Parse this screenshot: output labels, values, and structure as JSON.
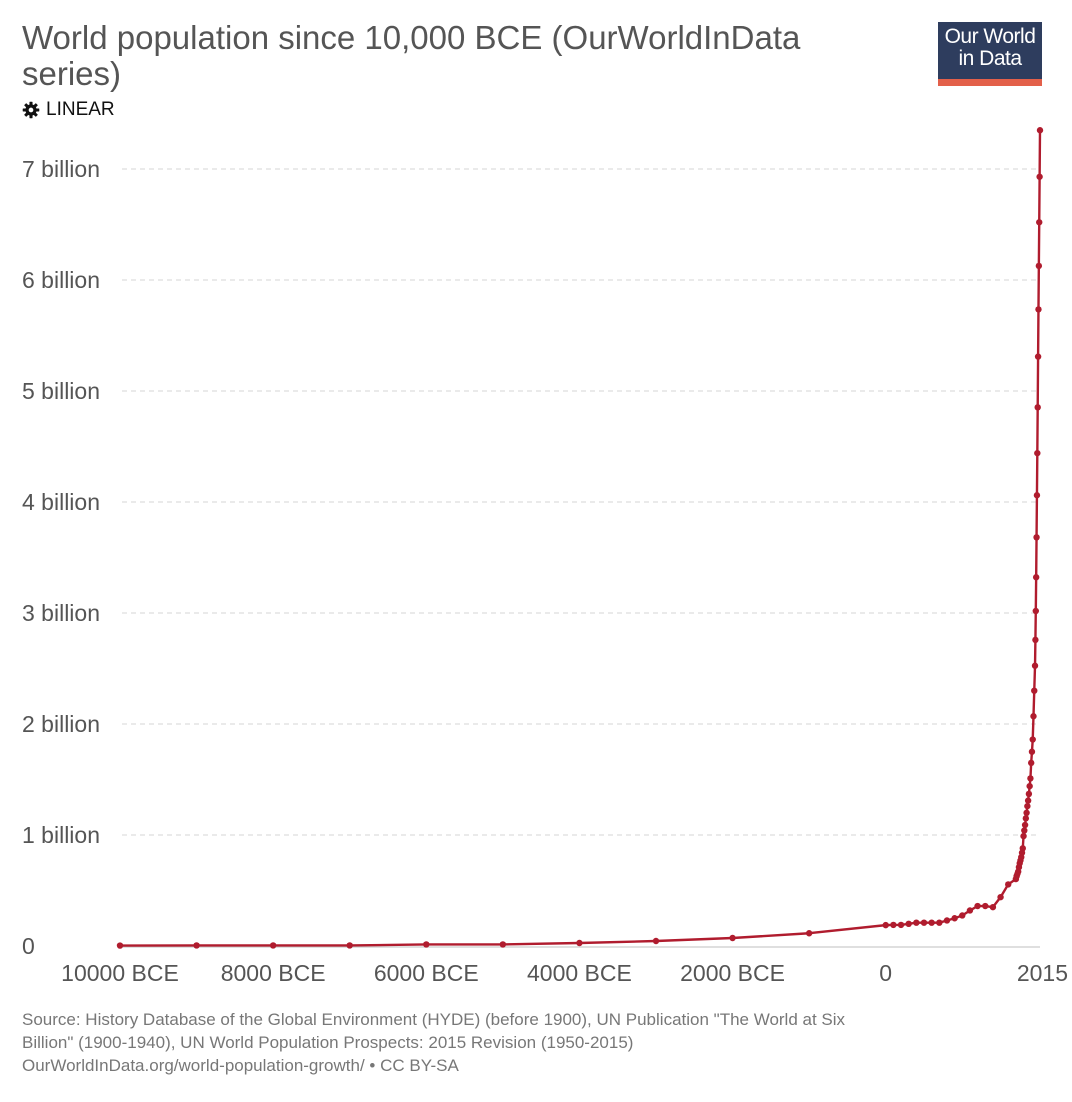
{
  "header": {
    "title": "World population since 10,000 BCE (OurWorldInData series)",
    "scale_toggle_label": "LINEAR",
    "logo_line1": "Our World",
    "logo_line2": "in Data"
  },
  "footer": {
    "source_line1": "Source: History Database of the Global Environment (HYDE) (before 1900), UN Publication \"The World at Six",
    "source_line2": "Billion\" (1900-1940), UN World Population Prospects: 2015 Revision (1950-2015)",
    "source_line3": "OurWorldInData.org/world-population-growth/ • CC BY-SA"
  },
  "colors": {
    "series": "#b01c2e",
    "grid": "#dddddd",
    "axis_text": "#555555",
    "logo_bg": "#2e3d5e",
    "logo_accent": "#e3604a"
  },
  "chart_data": {
    "type": "line",
    "title": "World population since 10,000 BCE (OurWorldInData series)",
    "xlabel": "",
    "ylabel": "",
    "x_ticks": [
      {
        "value": -10000,
        "label": "10000 BCE"
      },
      {
        "value": -8000,
        "label": "8000 BCE"
      },
      {
        "value": -6000,
        "label": "6000 BCE"
      },
      {
        "value": -4000,
        "label": "4000 BCE"
      },
      {
        "value": -2000,
        "label": "2000 BCE"
      },
      {
        "value": 0,
        "label": "0"
      },
      {
        "value": 2015,
        "label": "2015"
      }
    ],
    "y_ticks": [
      {
        "value": 0,
        "label": "0"
      },
      {
        "value": 1000000000,
        "label": "1 billion"
      },
      {
        "value": 2000000000,
        "label": "2 billion"
      },
      {
        "value": 3000000000,
        "label": "3 billion"
      },
      {
        "value": 4000000000,
        "label": "4 billion"
      },
      {
        "value": 5000000000,
        "label": "5 billion"
      },
      {
        "value": 6000000000,
        "label": "6 billion"
      },
      {
        "value": 7000000000,
        "label": "7 billion"
      }
    ],
    "xlim": [
      -10000,
      2015
    ],
    "ylim": [
      0,
      7400000000
    ],
    "grid": true,
    "series": [
      {
        "x": [
          -10000,
          -9000,
          -8000,
          -7000,
          -6000,
          -5000,
          -4000,
          -3000,
          -2000,
          -1000,
          0,
          100,
          200,
          300,
          400,
          500,
          600,
          700,
          800,
          900,
          1000,
          1100,
          1200,
          1300,
          1400,
          1500,
          1600,
          1700,
          1710,
          1720,
          1730,
          1740,
          1750,
          1760,
          1770,
          1780,
          1790,
          1800,
          1810,
          1820,
          1830,
          1840,
          1850,
          1860,
          1870,
          1880,
          1890,
          1900,
          1910,
          1920,
          1930,
          1940,
          1950,
          1955,
          1960,
          1965,
          1970,
          1975,
          1980,
          1985,
          1990,
          1995,
          2000,
          2005,
          2010,
          2015
        ],
        "values": [
          4000000,
          5000000,
          5000000,
          5000000,
          14000000,
          14000000,
          27000000,
          45000000,
          72000000,
          115000000,
          188000000,
          190000000,
          190000000,
          200000000,
          210000000,
          210000000,
          210000000,
          210000000,
          230000000,
          250000000,
          275000000,
          320000000,
          360000000,
          360000000,
          350000000,
          440000000,
          555000000,
          603000000,
          630000000,
          650000000,
          670000000,
          710000000,
          745000000,
          770000000,
          800000000,
          840000000,
          880000000,
          990000000,
          1040000000,
          1090000000,
          1150000000,
          1200000000,
          1260000000,
          1310000000,
          1370000000,
          1440000000,
          1510000000,
          1650000000,
          1750000000,
          1860000000,
          2070000000,
          2300000000,
          2525000000,
          2758000000,
          3018000000,
          3322000000,
          3682000000,
          4061000000,
          4440000000,
          4853000000,
          5310000000,
          5735000000,
          6127000000,
          6520000000,
          6930000000,
          7349000000
        ]
      }
    ]
  }
}
